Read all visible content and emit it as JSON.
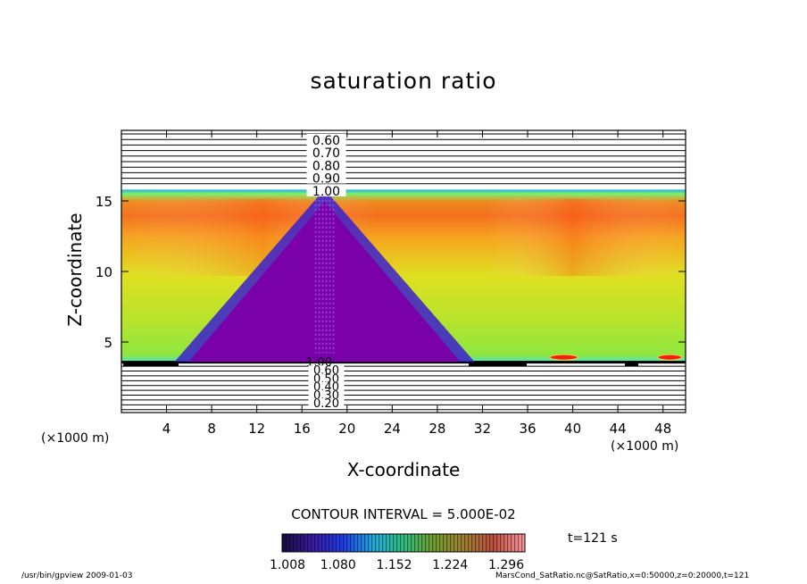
{
  "chart_data": {
    "type": "heatmap",
    "title": "saturation ratio",
    "xlabel": "X-coordinate",
    "ylabel": "Z-coordinate",
    "x_unit_label": "(×1000 m)",
    "xlim": [
      0,
      50
    ],
    "ylim": [
      0,
      20
    ],
    "x_ticks": [
      4,
      8,
      12,
      16,
      20,
      24,
      28,
      32,
      36,
      40,
      44,
      48
    ],
    "y_ticks": [
      5,
      10,
      15
    ],
    "colorbar": {
      "min": 1.008,
      "max": 1.32,
      "tick_values": [
        1.008,
        1.08,
        1.152,
        1.224,
        1.296
      ],
      "tick_labels": [
        "1.008",
        "1.080",
        "1.152",
        "1.224",
        "1.296"
      ]
    },
    "contour_interval_text": "CONTOUR INTERVAL = 5.000E-02",
    "upper_contour_labels": [
      "0.60",
      "0.70",
      "0.80",
      "0.90",
      "1.00"
    ],
    "lower_contour_labels": [
      "1.00",
      "0.60",
      "0.50",
      "0.40",
      "0.30",
      "0.20"
    ],
    "pyramid": {
      "base_left_x": 5.5,
      "base_right_x": 30.5,
      "base_z": 3.6,
      "apex_x": 18,
      "apex_z": 15.2
    },
    "saturated_layer": {
      "z_bottom": 3.6,
      "z_top": 15.8
    },
    "time_label": "t=121 s"
  },
  "footer": {
    "left": "/usr/bin/gpview   2009-01-03",
    "right": "MarsCond_SatRatio.nc@SatRatio,x=0:50000,z=0:20000,t=121"
  },
  "colors": {
    "frame": "#000000",
    "pyramid_fill": "#7a00aa",
    "pyramid_edge": "#3a1fd0"
  }
}
